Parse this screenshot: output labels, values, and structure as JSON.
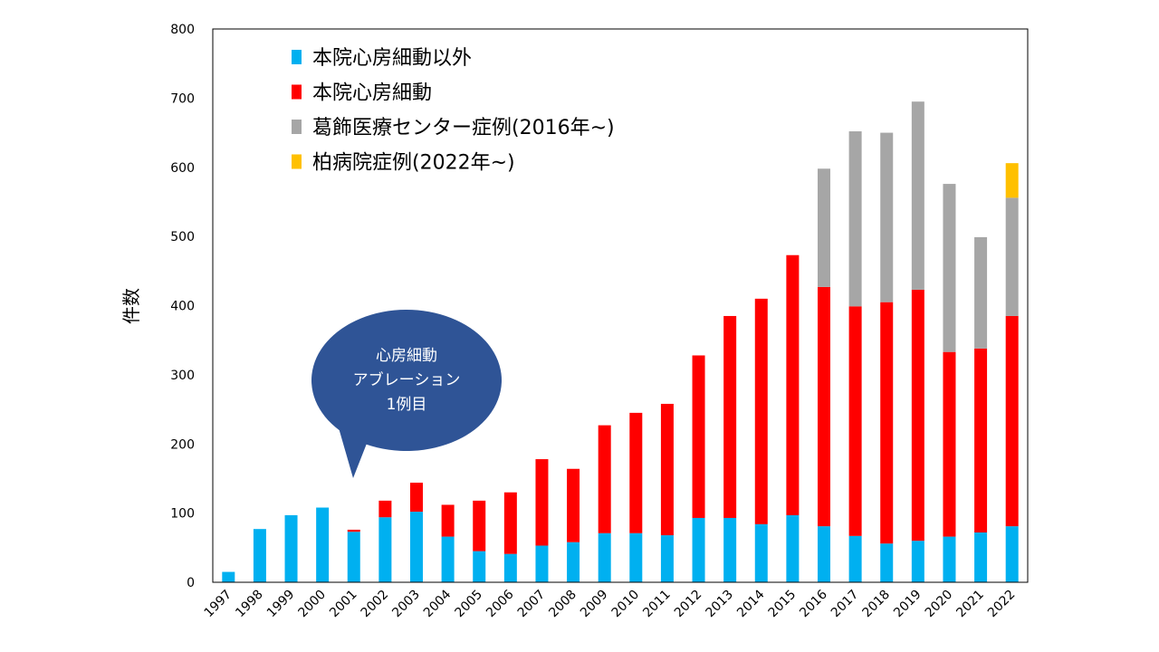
{
  "chart_data": {
    "type": "bar",
    "stacked": true,
    "title": "",
    "xlabel": "",
    "ylabel": "件数",
    "ylim": [
      0,
      800
    ],
    "yticks": [
      0,
      100,
      200,
      300,
      400,
      500,
      600,
      700,
      800
    ],
    "grid": false,
    "legend_position": "top-left",
    "categories": [
      "1997",
      "1998",
      "1999",
      "2000",
      "2001",
      "2002",
      "2003",
      "2004",
      "2005",
      "2006",
      "2007",
      "2008",
      "2009",
      "2010",
      "2011",
      "2012",
      "2013",
      "2014",
      "2015",
      "2016",
      "2017",
      "2018",
      "2019",
      "2020",
      "2021",
      "2022"
    ],
    "series": [
      {
        "name": "本院心房細動以外",
        "color": "#00B0F0",
        "values": [
          15,
          77,
          97,
          108,
          73,
          94,
          102,
          66,
          45,
          41,
          53,
          58,
          71,
          71,
          68,
          93,
          93,
          84,
          97,
          81,
          67,
          56,
          60,
          66,
          72,
          81
        ]
      },
      {
        "name": "本院心房細動",
        "color": "#FF0000",
        "values": [
          0,
          0,
          0,
          0,
          3,
          24,
          42,
          46,
          73,
          89,
          125,
          106,
          156,
          174,
          190,
          235,
          292,
          326,
          376,
          346,
          332,
          349,
          363,
          267,
          266,
          304
        ]
      },
      {
        "name": "葛飾医療センター症例(2016年~)",
        "color": "#A6A6A6",
        "values": [
          0,
          0,
          0,
          0,
          0,
          0,
          0,
          0,
          0,
          0,
          0,
          0,
          0,
          0,
          0,
          0,
          0,
          0,
          0,
          171,
          253,
          245,
          272,
          243,
          161,
          171
        ]
      },
      {
        "name": "柏病院症例(2022年~)",
        "color": "#FFC000",
        "values": [
          0,
          0,
          0,
          0,
          0,
          0,
          0,
          0,
          0,
          0,
          0,
          0,
          0,
          0,
          0,
          0,
          0,
          0,
          0,
          0,
          0,
          0,
          0,
          0,
          0,
          50
        ]
      }
    ]
  },
  "callout": {
    "lines": [
      "心房細動",
      "アブレーション",
      "1例目"
    ],
    "color": "#2F5496"
  }
}
